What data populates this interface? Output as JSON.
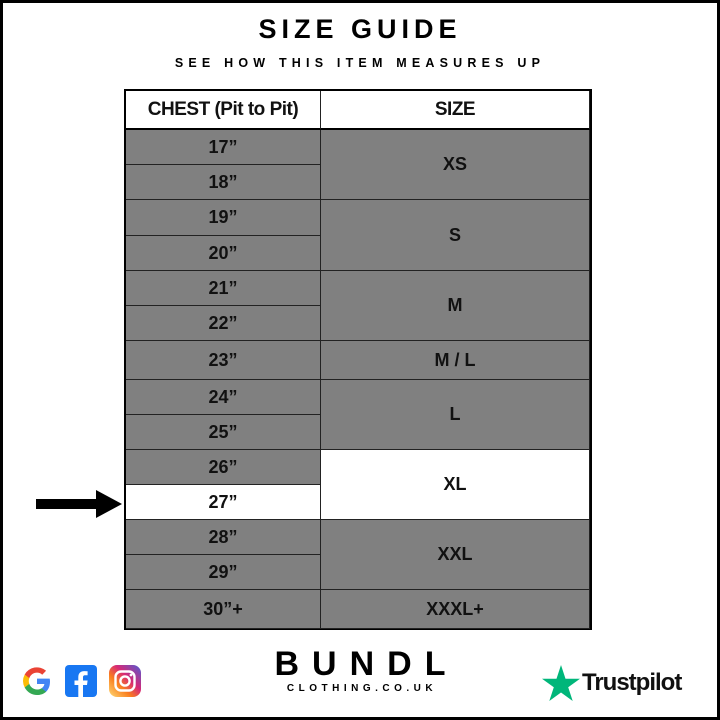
{
  "header": {
    "title": "SIZE GUIDE",
    "subtitle": "SEE HOW THIS ITEM MEASURES UP"
  },
  "table": {
    "columns": [
      "CHEST (Pit to Pit)",
      "SIZE"
    ],
    "chest_rows": [
      "17”",
      "18”",
      "19”",
      "20”",
      "21”",
      "22”",
      "23”",
      "24”",
      "25”",
      "26”",
      "27”",
      "28”",
      "29”",
      "30”+"
    ],
    "sizes": [
      {
        "label": "XS",
        "span": 2
      },
      {
        "label": "S",
        "span": 2
      },
      {
        "label": "M",
        "span": 2
      },
      {
        "label": "M / L",
        "span": 1
      },
      {
        "label": "L",
        "span": 2
      },
      {
        "label": "XL",
        "span": 2
      },
      {
        "label": "XXL",
        "span": 2
      },
      {
        "label": "XXXL+",
        "span": 1
      }
    ],
    "highlighted_chest": "27”",
    "highlighted_size": "XL",
    "cell_color": "#808080",
    "highlight_color": "#ffffff"
  },
  "footer": {
    "brand": "BUNDL",
    "domain": "CLOTHING.CO.UK",
    "social_icons": [
      "google-icon",
      "facebook-icon",
      "instagram-icon"
    ],
    "trustpilot": "Trustpilot",
    "trustpilot_color": "#00b67a"
  }
}
